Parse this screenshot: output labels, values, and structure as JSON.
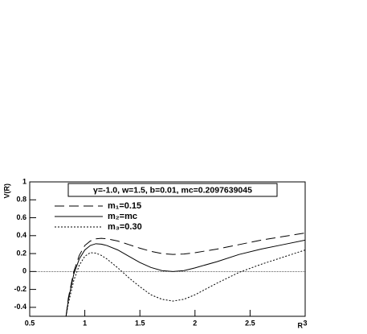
{
  "chart_data": {
    "type": "line",
    "title": "γ=-1.0, w=1.5, b=0.01, mc=0.2097639045",
    "x_label": "R",
    "y_label": "V(R)",
    "x": [
      0.83,
      0.85,
      0.9,
      0.95,
      1.0,
      1.05,
      1.1,
      1.15,
      1.2,
      1.3,
      1.4,
      1.5,
      1.6,
      1.7,
      1.8,
      1.9,
      2.0,
      2.2,
      2.4,
      2.6,
      2.8,
      3.0
    ],
    "series": [
      {
        "name": "m₁=0.15",
        "color": "#000000",
        "dash": "12,6",
        "values": [
          -0.5,
          -0.3,
          0.0,
          0.18,
          0.29,
          0.34,
          0.365,
          0.37,
          0.365,
          0.34,
          0.3,
          0.26,
          0.225,
          0.2,
          0.19,
          0.195,
          0.21,
          0.25,
          0.3,
          0.35,
          0.39,
          0.43
        ]
      },
      {
        "name": "m₂=mc",
        "color": "#000000",
        "dash": "none",
        "values": [
          -0.5,
          -0.32,
          -0.03,
          0.14,
          0.24,
          0.29,
          0.31,
          0.305,
          0.29,
          0.24,
          0.17,
          0.1,
          0.045,
          0.01,
          0.0,
          0.01,
          0.04,
          0.11,
          0.19,
          0.25,
          0.3,
          0.35
        ]
      },
      {
        "name": "m₃=0.30",
        "color": "#000000",
        "dash": "2,2",
        "values": [
          -0.5,
          -0.36,
          -0.1,
          0.07,
          0.17,
          0.21,
          0.205,
          0.18,
          0.14,
          0.04,
          -0.07,
          -0.17,
          -0.26,
          -0.31,
          -0.33,
          -0.31,
          -0.26,
          -0.13,
          -0.01,
          0.08,
          0.16,
          0.24
        ]
      }
    ],
    "xlim": [
      0.5,
      3
    ],
    "xticks": [
      0.5,
      1,
      1.5,
      2,
      2.5,
      3
    ],
    "ylim": [
      -0.5,
      1
    ],
    "yticks": [
      -0.4,
      -0.2,
      0,
      0.2,
      0.4,
      0.6,
      0.8,
      1
    ],
    "reference_line": 0
  }
}
